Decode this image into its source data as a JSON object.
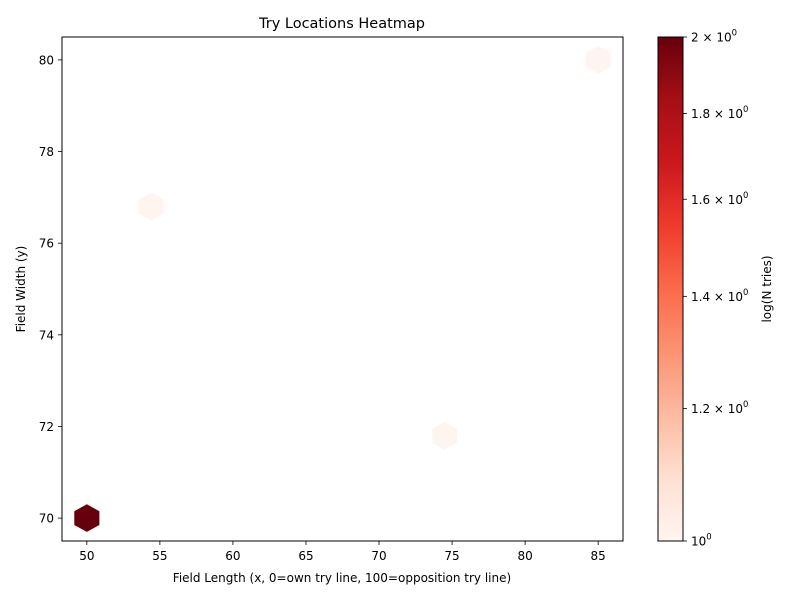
{
  "chart_data": {
    "type": "heatmap",
    "title": "Try Locations Heatmap",
    "xlabel": "Field Length (x, 0=own try line, 100=opposition try line)",
    "ylabel": "Field Width (y)",
    "xlim": [
      48.3,
      86.7
    ],
    "ylim": [
      69.5,
      80.5
    ],
    "xticks": [
      50,
      55,
      60,
      65,
      70,
      75,
      80,
      85
    ],
    "yticks": [
      70,
      72,
      74,
      76,
      78,
      80
    ],
    "cells": [
      {
        "x": 50.0,
        "y": 70.0,
        "count": 2
      },
      {
        "x": 54.4,
        "y": 76.8,
        "count": 1
      },
      {
        "x": 74.5,
        "y": 71.8,
        "count": 1
      },
      {
        "x": 85.0,
        "y": 80.0,
        "count": 1
      }
    ],
    "colorbar": {
      "label": "log(N tries)",
      "scale": "log",
      "range": [
        1,
        2
      ],
      "ticks": [
        {
          "value": 1.0,
          "label": "10",
          "sup": "0"
        },
        {
          "value": 1.2,
          "label": "1.2 × 10",
          "sup": "0"
        },
        {
          "value": 1.4,
          "label": "1.4 × 10",
          "sup": "0"
        },
        {
          "value": 1.6,
          "label": "1.6 × 10",
          "sup": "0"
        },
        {
          "value": 1.8,
          "label": "1.8 × 10",
          "sup": "0"
        },
        {
          "value": 2.0,
          "label": "2 × 10",
          "sup": "0"
        }
      ],
      "colormap": [
        "#fff5f0",
        "#fee0d2",
        "#fcbba1",
        "#fc9272",
        "#fb6a4a",
        "#ef3b2c",
        "#cb181d",
        "#a50f15",
        "#67000d"
      ]
    }
  }
}
